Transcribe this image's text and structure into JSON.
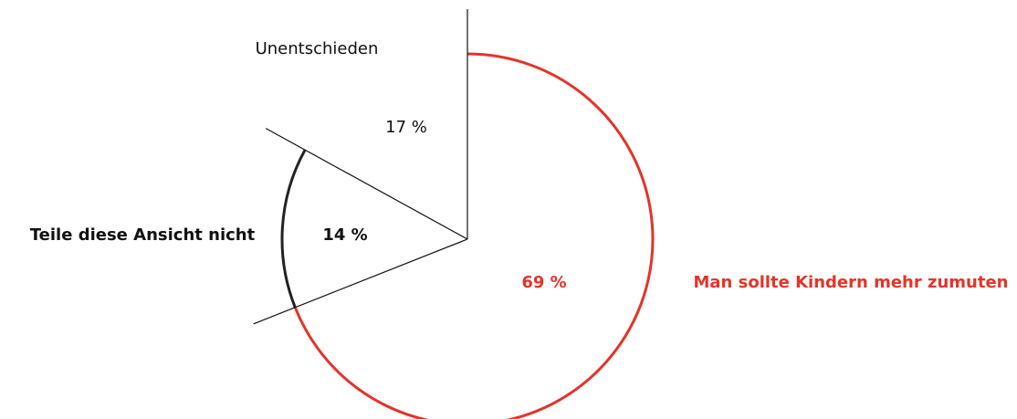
{
  "chart_data": {
    "type": "pie",
    "categories": [
      "Man sollte Kindern mehr zumuten",
      "Teile diese Ansicht nicht",
      "Unentschieden"
    ],
    "values": [
      69,
      14,
      17
    ],
    "value_labels": [
      "69 %",
      "14 %",
      "17 %"
    ],
    "colors": [
      "#e3342a",
      "#222222",
      "none"
    ]
  }
}
